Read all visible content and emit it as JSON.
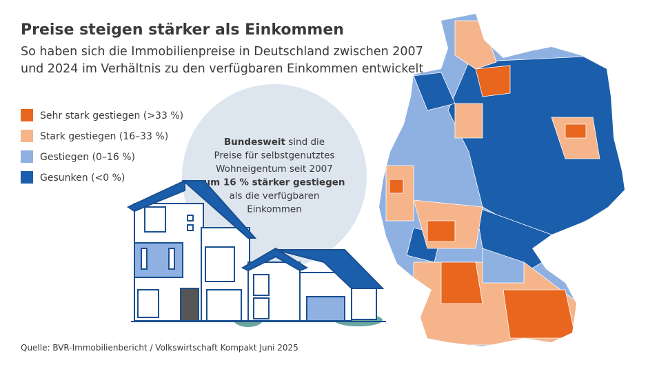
{
  "title": "Preise steigen stärker als Einkommen",
  "subtitle": [
    "So haben sich die Immobilienpreise in Deutschland zwischen 2007",
    "und 2024 im Verhältnis zu den verfügbaren Einkommen entwickelt"
  ],
  "legend": [
    {
      "label": "Sehr stark gestiegen (>33 %)",
      "color": "#e8661e"
    },
    {
      "label": "Stark gestiegen (16–33 %)",
      "color": "#f6b48a"
    },
    {
      "label": "Gestiegen (0–16 %)",
      "color": "#8fb1e2"
    },
    {
      "label": "Gesunken (<0 %)",
      "color": "#1b5eab"
    }
  ],
  "callout": [
    [
      {
        "text": "Bundesweit",
        "bold": true
      },
      {
        "text": " sind die",
        "bold": false
      }
    ],
    [
      {
        "text": "Preise für selbstgenutztes",
        "bold": false
      }
    ],
    [
      {
        "text": "Wohneigentum seit 2007",
        "bold": false
      }
    ],
    [
      {
        "text": "um 16 % stärker gestiegen",
        "bold": true
      }
    ],
    [
      {
        "text": "als die verfügbaren",
        "bold": false
      }
    ],
    [
      {
        "text": "Einkommen",
        "bold": false
      }
    ]
  ],
  "source": "Quelle: BVR-Immobilienbericht / Volkswirtschaft Kompakt Juni 2025"
}
